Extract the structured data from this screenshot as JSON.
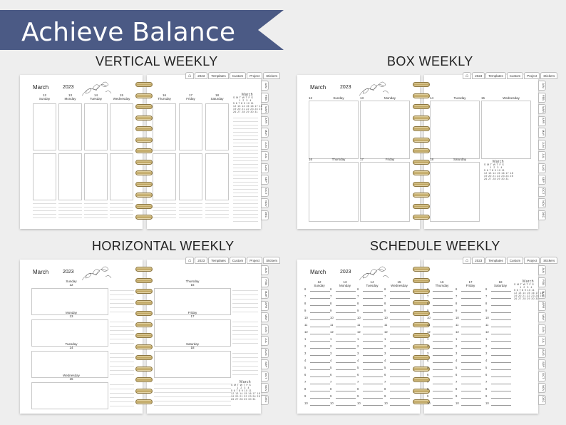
{
  "banner": {
    "text": "Achieve Balance",
    "color": "#4b5a85"
  },
  "sections": {
    "vertical": "VERTICAL WEEKLY",
    "box": "BOX WEEKLY",
    "horizontal": "HORIZONTAL WEEKLY",
    "schedule": "SCHEDULE WEEKLY"
  },
  "planner": {
    "month": "March",
    "year": "2023",
    "top_tabs": [
      "2023",
      "Templates",
      "Custom",
      "Project",
      "Stickers"
    ],
    "month_tabs": [
      "JAN",
      "FEB",
      "MAR",
      "APR",
      "MAY",
      "JUN",
      "JUL",
      "AUG",
      "SEP",
      "OCT",
      "NOV",
      "DEC"
    ],
    "days": [
      {
        "num": "12",
        "name": "Sunday"
      },
      {
        "num": "13",
        "name": "Monday"
      },
      {
        "num": "14",
        "name": "Tuesday"
      },
      {
        "num": "15",
        "name": "Wednesday"
      },
      {
        "num": "16",
        "name": "Thursday"
      },
      {
        "num": "17",
        "name": "Friday"
      },
      {
        "num": "18",
        "name": "Saturday"
      }
    ],
    "mini_cal": {
      "title": "March",
      "header": "S M T W T F S",
      "rows": [
        "      1  2  3  4",
        "5 6 7 8 9 10 11",
        "12 13 14 15 16 17 18",
        "19 20 21 22 23 24 25",
        "26 27 28 29 30 31"
      ]
    },
    "hours": [
      "6",
      "7",
      "8",
      "9",
      "10",
      "11",
      "12",
      "1",
      "2",
      "3",
      "4",
      "5",
      "6",
      "7",
      "8",
      "9",
      "10"
    ]
  }
}
